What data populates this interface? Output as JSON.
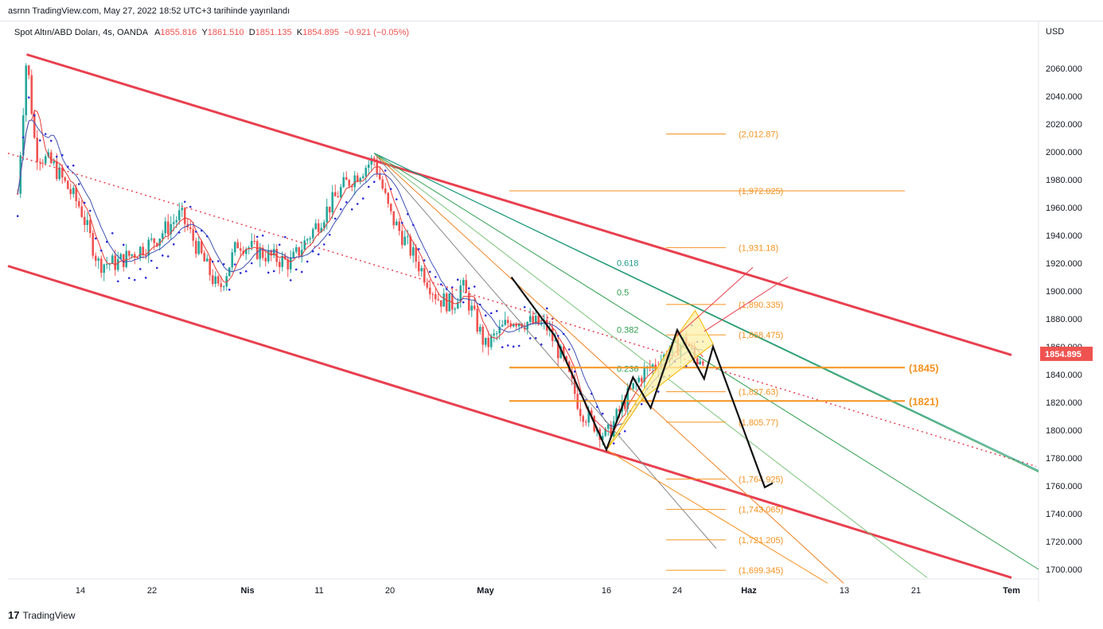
{
  "header": {
    "published": "asrnn TradingView.com, May 27, 2022 18:52 UTC+3 tarihinde yayınlandı"
  },
  "legend": {
    "symbol": "Spot Altın/ABD Doları, 4s, OANDA",
    "o_label": "A",
    "o_value": "1855.816",
    "h_label": "Y",
    "h_value": "1861.510",
    "l_label": "D",
    "l_value": "1851.135",
    "c_label": "K",
    "c_value": "1854.895",
    "change": "−0.921 (−0.05%)"
  },
  "price_axis": {
    "currency": "USD",
    "current_price": "1854.895"
  },
  "footer": {
    "logo": "17",
    "brand": "TradingView"
  },
  "colors": {
    "channel": "#e8404f",
    "fib_orange": "#f5921e",
    "fan_green": "#2e9e4f",
    "fan_teal": "#1d9a8a",
    "bull_candle": "#26a69a",
    "bear_candle": "#ef5350",
    "sar": "#2a2ad8",
    "pattern_fill": "#fdf0a8",
    "current_price_bg": "#ef5350"
  },
  "chart_data": {
    "type": "candlestick",
    "title": "Spot Altın/ABD Doları, 4s, OANDA",
    "ylabel": "USD",
    "ylim": [
      1690,
      2080
    ],
    "y_ticks": [
      "1700.000",
      "1720.000",
      "1740.000",
      "1760.000",
      "1780.000",
      "1800.000",
      "1820.000",
      "1840.000",
      "1860.000",
      "1880.000",
      "1900.000",
      "1920.000",
      "1940.000",
      "1960.000",
      "1980.000",
      "2000.000",
      "2020.000",
      "2040.000",
      "2060.000"
    ],
    "x_ticks": [
      "14",
      "22",
      "Nis",
      "11",
      "20",
      "May",
      "16",
      "24",
      "Haz",
      "13",
      "21",
      "Tem"
    ],
    "ohlc_last": {
      "open": 1855.816,
      "high": 1861.51,
      "low": 1851.135,
      "close": 1854.895,
      "change": -0.921,
      "change_pct": -0.05
    },
    "price_path": [
      [
        "Mar 7",
        1970
      ],
      [
        "Mar 8",
        2070
      ],
      [
        "Mar 9",
        2000
      ],
      [
        "Mar 11",
        1990
      ],
      [
        "Mar 14",
        1960
      ],
      [
        "Mar 16",
        1920
      ],
      [
        "Mar 18",
        1920
      ],
      [
        "Mar 22",
        1935
      ],
      [
        "Mar 25",
        1955
      ],
      [
        "Mar 29",
        1900
      ],
      [
        "Mar 31",
        1935
      ],
      [
        "Apr 4",
        1925
      ],
      [
        "Apr 7",
        1920
      ],
      [
        "Apr 11",
        1950
      ],
      [
        "Apr 14",
        1975
      ],
      [
        "Apr 18",
        1995
      ],
      [
        "Apr 20",
        1955
      ],
      [
        "Apr 22",
        1935
      ],
      [
        "Apr 26",
        1895
      ],
      [
        "Apr 28",
        1890
      ],
      [
        "Apr 29",
        1905
      ],
      [
        "May 2",
        1860
      ],
      [
        "May 5",
        1880
      ],
      [
        "May 9",
        1875
      ],
      [
        "May 11",
        1850
      ],
      [
        "May 13",
        1815
      ],
      [
        "May 16",
        1795
      ],
      [
        "May 18",
        1820
      ],
      [
        "May 20",
        1840
      ],
      [
        "May 23",
        1855
      ],
      [
        "May 25",
        1865
      ],
      [
        "May 26",
        1850
      ],
      [
        "May 27",
        1855
      ]
    ],
    "fib_levels": [
      "(2,012.87)",
      "(1,972.025)",
      "(1,931.18)",
      "(1,890.335)",
      "(1,868.475)",
      "(1,827.63)",
      "(1,805.77)",
      "(1,764.925)",
      "(1,743.065)",
      "(1,721.205)",
      "(1,699.345)"
    ],
    "fib_level_values": [
      2012.87,
      1972.025,
      1931.18,
      1890.335,
      1868.475,
      1827.63,
      1805.77,
      1764.925,
      1743.065,
      1721.205,
      1699.345
    ],
    "horizontal_levels": [
      {
        "label": "(1845)",
        "value": 1845
      },
      {
        "label": "(1821)",
        "value": 1821
      }
    ],
    "fan_labels": [
      "0.618",
      "0.5",
      "0.382",
      "0.236"
    ],
    "channel_upper": [
      [
        "Mar 8",
        2070
      ],
      [
        "Jul 1",
        1854
      ]
    ],
    "channel_lower": [
      [
        "Mar 7",
        1918
      ],
      [
        "Jul 1",
        1694
      ]
    ]
  }
}
